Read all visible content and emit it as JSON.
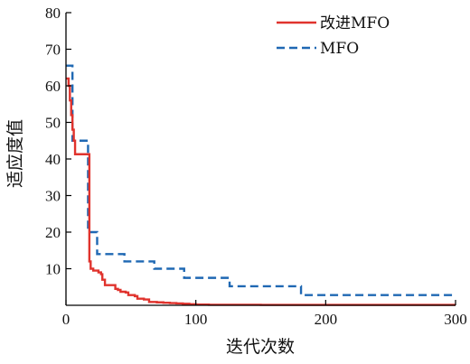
{
  "chart_data": {
    "type": "line",
    "xlabel": "迭代次数",
    "ylabel": "适应度值",
    "xlim": [
      0,
      300
    ],
    "ylim": [
      0,
      80
    ],
    "xticks": [
      0,
      100,
      200,
      300
    ],
    "yticks": [
      10,
      20,
      30,
      40,
      50,
      60,
      70,
      80
    ],
    "xtick_labels": [
      "0",
      "100",
      "200",
      "300"
    ],
    "ytick_labels": [
      "10",
      "20",
      "30",
      "40",
      "50",
      "60",
      "70",
      "80"
    ],
    "grid": false,
    "legend_position": "top-right",
    "series": [
      {
        "name": "改进MFO",
        "color": "#e0332d",
        "style": "solid",
        "step": true,
        "points": [
          [
            0,
            62
          ],
          [
            2,
            60
          ],
          [
            3,
            56
          ],
          [
            4,
            52
          ],
          [
            5,
            48
          ],
          [
            6,
            45
          ],
          [
            7,
            41.3
          ],
          [
            12,
            41.3
          ],
          [
            17,
            41.3
          ],
          [
            18,
            12
          ],
          [
            19,
            10
          ],
          [
            21,
            9.5
          ],
          [
            24,
            9.5
          ],
          [
            25,
            9
          ],
          [
            27,
            8.5
          ],
          [
            28,
            7
          ],
          [
            30,
            5.5
          ],
          [
            36,
            5.5
          ],
          [
            38,
            4.5
          ],
          [
            40,
            4.2
          ],
          [
            42,
            3.7
          ],
          [
            46,
            3.5
          ],
          [
            48,
            2.8
          ],
          [
            53,
            2.5
          ],
          [
            55,
            1.8
          ],
          [
            60,
            1.6
          ],
          [
            64,
            0.9
          ],
          [
            70,
            0.8
          ],
          [
            75,
            0.7
          ],
          [
            80,
            0.6
          ],
          [
            85,
            0.5
          ],
          [
            90,
            0.4
          ],
          [
            95,
            0.3
          ],
          [
            100,
            0.2
          ],
          [
            110,
            0.15
          ],
          [
            150,
            0.1
          ],
          [
            200,
            0.1
          ],
          [
            300,
            0.1
          ]
        ]
      },
      {
        "name": "MFO",
        "color": "#1f68b3",
        "style": "dashed",
        "step": true,
        "points": [
          [
            0,
            65.5
          ],
          [
            4,
            65.5
          ],
          [
            5,
            45
          ],
          [
            12,
            45
          ],
          [
            16,
            45
          ],
          [
            17,
            20
          ],
          [
            23,
            20
          ],
          [
            24,
            14
          ],
          [
            44,
            14
          ],
          [
            45,
            12
          ],
          [
            67,
            12
          ],
          [
            68,
            10
          ],
          [
            90,
            10
          ],
          [
            91,
            7.5
          ],
          [
            125,
            7.5
          ],
          [
            126,
            5.2
          ],
          [
            180,
            5.2
          ],
          [
            181,
            2.8
          ],
          [
            300,
            2.8
          ]
        ]
      }
    ]
  }
}
